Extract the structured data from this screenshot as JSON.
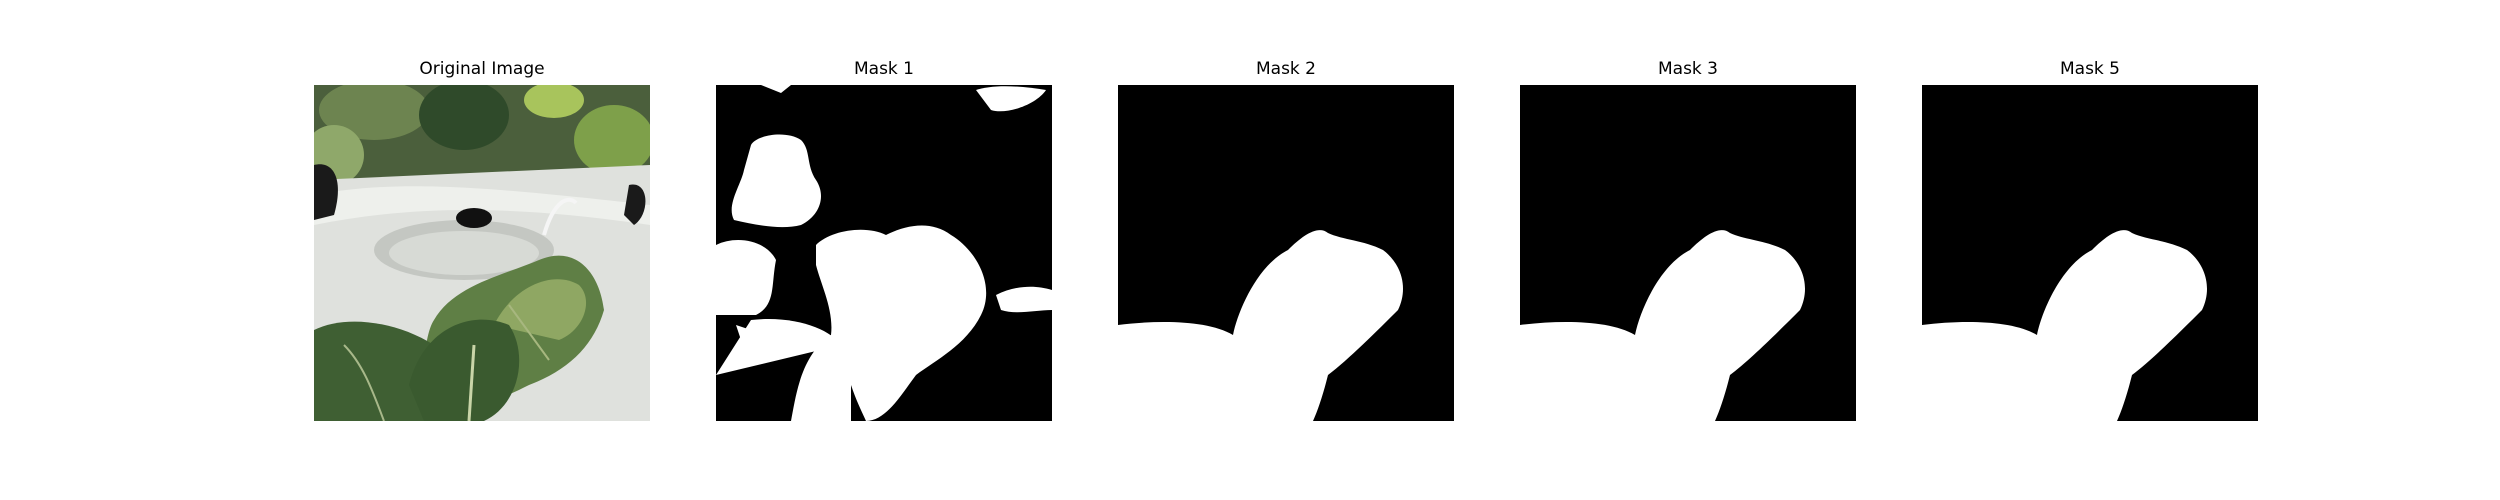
{
  "panels": [
    {
      "title": "Original Image",
      "kind": "photo",
      "description_icon": "plant-photo"
    },
    {
      "title": "Mask 1",
      "kind": "mask"
    },
    {
      "title": "Mask 2",
      "kind": "mask"
    },
    {
      "title": "Mask 3",
      "kind": "mask"
    },
    {
      "title": "Mask 5",
      "kind": "mask"
    }
  ],
  "colors": {
    "mask_background": "#000000",
    "mask_foreground": "#ffffff",
    "leaf_dark": "#3f5f33",
    "leaf_mid": "#5f7f45",
    "leaf_light": "#9bb26a",
    "pot_white": "#dfe1dd",
    "pot_shadow": "#b9bcb7"
  }
}
